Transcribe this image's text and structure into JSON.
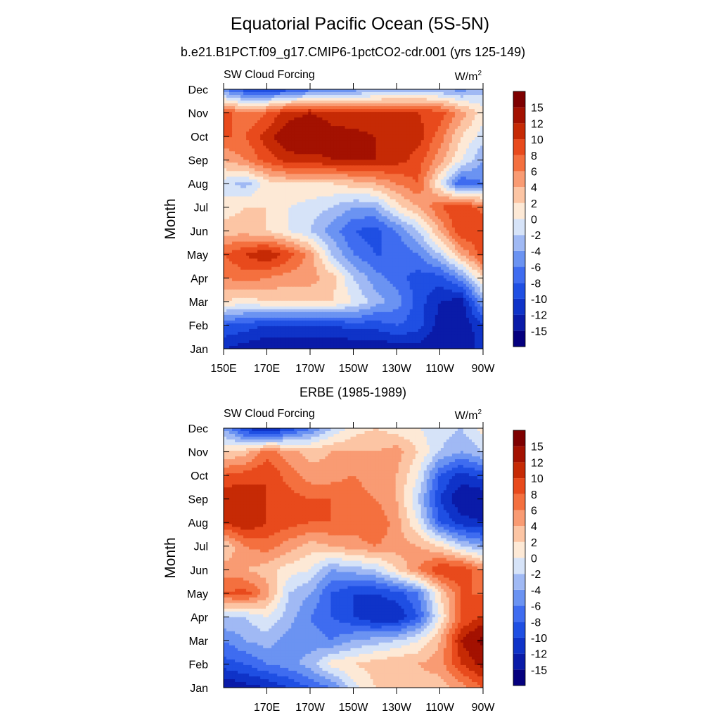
{
  "figure": {
    "title": "Equatorial Pacific Ocean (5S-5N)",
    "subtitle": "b.e21.B1PCT.f09_g17.CMIP6-1pctCO2-cdr.001 (yrs 125-149)"
  },
  "colorbar": {
    "levels": [
      -15,
      -12,
      -10,
      -8,
      -6,
      -4,
      -2,
      0,
      2,
      4,
      6,
      8,
      10,
      12,
      15
    ],
    "labels": [
      "-15",
      "-12",
      "-10",
      "-8",
      "-6",
      "-4",
      "-2",
      "0",
      "2",
      "4",
      "6",
      "8",
      "10",
      "12",
      "15"
    ],
    "colors": [
      "#05007e",
      "#0a1ba8",
      "#0f33c8",
      "#1f4fe3",
      "#3f6cf0",
      "#6b93f2",
      "#a0b9f4",
      "#d6e3f8",
      "#fde9d6",
      "#fcc5a4",
      "#f99b73",
      "#f4703f",
      "#e84a1c",
      "#c62a05",
      "#a31101",
      "#7e0000"
    ]
  },
  "chart_data": [
    {
      "type": "heatmap",
      "title": "b.e21.B1PCT.f09_g17.CMIP6-1pctCO2-cdr.001 (yrs 125-149)",
      "left_label": "SW Cloud Forcing",
      "units": "W/m",
      "units_sup": "2",
      "ylabel": "Month",
      "xlabel": "",
      "x_values": [
        150,
        160,
        170,
        180,
        190,
        200,
        210,
        220,
        230,
        240,
        250,
        260,
        270
      ],
      "x_tick_values": [
        150,
        170,
        190,
        210,
        230,
        250,
        270
      ],
      "x_tick_labels": [
        "150E",
        "170E",
        "170W",
        "150W",
        "130W",
        "110W",
        "90W"
      ],
      "y_labels": [
        "Jan",
        "Feb",
        "Mar",
        "Apr",
        "May",
        "Jun",
        "Jul",
        "Aug",
        "Sep",
        "Oct",
        "Nov",
        "Dec"
      ],
      "z": [
        [
          -12,
          -13,
          -14,
          -14,
          -14,
          -14,
          -14,
          -14,
          -13,
          -13,
          -14,
          -14,
          -11
        ],
        [
          -8,
          -9,
          -10,
          -10,
          -10,
          -10,
          -9,
          -9,
          -8,
          -9,
          -13,
          -14,
          -10
        ],
        [
          2,
          1,
          2,
          2,
          2,
          2,
          0,
          -3,
          -5,
          -9,
          -12,
          -13,
          -4
        ],
        [
          6,
          7,
          6,
          5,
          5,
          3,
          -2,
          -5,
          -7,
          -9,
          -9,
          -5,
          2
        ],
        [
          8,
          10,
          12,
          9,
          5,
          -2,
          -6,
          -8,
          -8,
          -6,
          -2,
          4,
          9
        ],
        [
          3,
          3,
          2,
          0,
          -2,
          -5,
          -8,
          -9,
          -6,
          -2,
          4,
          10,
          10
        ],
        [
          1,
          2,
          2,
          0,
          -1,
          -2,
          -4,
          -4,
          1,
          4,
          8,
          10,
          7
        ],
        [
          -1,
          -3,
          1,
          2,
          2,
          2,
          3,
          4,
          6,
          8,
          0,
          -8,
          -6
        ],
        [
          4,
          6,
          9,
          11,
          11,
          12,
          12,
          12,
          11,
          9,
          5,
          0,
          -4
        ],
        [
          8,
          8,
          11,
          14,
          15,
          13,
          13,
          12,
          12,
          11,
          7,
          2,
          -1
        ],
        [
          9,
          6,
          8,
          11,
          12,
          11,
          10,
          10,
          10,
          10,
          9,
          5,
          1
        ],
        [
          -6,
          -9,
          -10,
          -9,
          -7,
          -6,
          -5,
          -4,
          -3,
          -3,
          -4,
          -5,
          -3
        ]
      ]
    },
    {
      "type": "heatmap",
      "title": "ERBE (1985-1989)",
      "left_label": "SW Cloud Forcing",
      "units": "W/m",
      "units_sup": "2",
      "ylabel": "Month",
      "xlabel": "",
      "x_values": [
        150,
        160,
        170,
        180,
        190,
        200,
        210,
        220,
        230,
        240,
        250,
        260,
        270
      ],
      "x_tick_values": [
        170,
        190,
        210,
        230,
        250,
        270
      ],
      "x_tick_labels": [
        "170E",
        "170W",
        "150W",
        "130W",
        "110W",
        "90W"
      ],
      "y_labels": [
        "Jan",
        "Feb",
        "Mar",
        "Apr",
        "May",
        "Jun",
        "Jul",
        "Aug",
        "Sep",
        "Oct",
        "Nov",
        "Dec"
      ],
      "z": [
        [
          -14,
          -13,
          -12,
          -10,
          -8,
          -6,
          -1,
          2,
          3,
          3,
          3,
          5,
          8
        ],
        [
          -9,
          -8,
          -6,
          -5,
          -3,
          1,
          2,
          3,
          4,
          4,
          5,
          10,
          13
        ],
        [
          -6,
          -4,
          -3,
          -5,
          -5,
          -6,
          -4,
          -3,
          -2,
          0,
          4,
          12,
          16
        ],
        [
          -2,
          -2,
          0,
          -3,
          -6,
          -8,
          -10,
          -12,
          -12,
          -8,
          0,
          8,
          10
        ],
        [
          8,
          9,
          5,
          -2,
          -4,
          -8,
          -10,
          -10,
          -9,
          -6,
          2,
          8,
          8
        ],
        [
          5,
          4,
          3,
          1,
          0,
          -4,
          -3,
          -2,
          2,
          6,
          10,
          10,
          6
        ],
        [
          2,
          6,
          7,
          5,
          3,
          4,
          5,
          6,
          5,
          4,
          2,
          -2,
          -4
        ],
        [
          10,
          12,
          10,
          9,
          8,
          8,
          7,
          8,
          5,
          0,
          -8,
          -11,
          -12
        ],
        [
          12,
          12,
          10,
          9,
          8,
          8,
          8,
          6,
          4,
          -2,
          -10,
          -14,
          -14
        ],
        [
          8,
          9,
          10,
          7,
          5,
          5,
          6,
          4,
          4,
          0,
          -8,
          -11,
          -9
        ],
        [
          2,
          3,
          7,
          5,
          3,
          4,
          4,
          4,
          5,
          2,
          -2,
          -4,
          -2
        ],
        [
          -4,
          -10,
          -13,
          -10,
          -6,
          -2,
          1,
          2,
          1,
          0,
          -1,
          -2,
          1
        ]
      ]
    }
  ]
}
